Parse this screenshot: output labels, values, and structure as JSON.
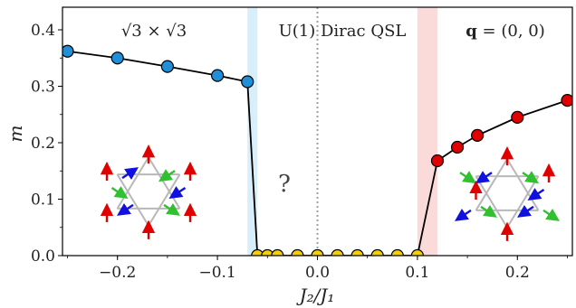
{
  "chart_data": {
    "type": "line",
    "xlabel": "J₂/J₁",
    "ylabel": "m",
    "xlim": [
      -0.255,
      0.255
    ],
    "ylim": [
      0.0,
      0.44
    ],
    "xticks": [
      -0.2,
      -0.1,
      0.0,
      0.1,
      0.2
    ],
    "xtick_labels": [
      "−0.2",
      "−0.1",
      "0.0",
      "0.1",
      "0.2"
    ],
    "yticks": [
      0.0,
      0.1,
      0.2,
      0.3,
      0.4
    ],
    "ytick_labels": [
      "0.0",
      "0.1",
      "0.2",
      "0.3",
      "0.4"
    ],
    "series": [
      {
        "color": "#1f8fd8",
        "x": [
          -0.25,
          -0.2,
          -0.15,
          -0.1,
          -0.07
        ],
        "y": [
          0.362,
          0.35,
          0.335,
          0.319,
          0.308
        ]
      },
      {
        "color": "#f5d000",
        "x": [
          -0.06,
          -0.05,
          -0.04,
          -0.02,
          0.0,
          0.02,
          0.04,
          0.06,
          0.08,
          0.1
        ],
        "y": [
          0.0,
          0.0,
          0.0,
          0.0,
          0.0,
          0.0,
          0.0,
          0.0,
          0.0,
          0.0
        ]
      },
      {
        "color": "#e00000",
        "x": [
          0.12,
          0.14,
          0.16,
          0.2,
          0.25
        ],
        "y": [
          0.168,
          0.192,
          0.213,
          0.245,
          0.275
        ]
      }
    ],
    "connect": [
      {
        "from": [
          -0.07,
          0.308
        ],
        "to": [
          -0.06,
          0.0
        ]
      },
      {
        "from": [
          0.1,
          0.0
        ],
        "to": [
          0.12,
          0.168
        ]
      }
    ],
    "bands": [
      {
        "x0": -0.07,
        "x1": -0.06,
        "color": "#d8effb"
      },
      {
        "x0": 0.1,
        "x1": 0.12,
        "color": "#fbdada"
      }
    ],
    "vline": {
      "x": 0.0,
      "color": "#a0a0a0"
    },
    "annotations": {
      "left_phase": "√3 × √3",
      "middle_phase": "U(1) Dirac QSL",
      "right_phase_bold": "q",
      "right_phase_rest": " = (0, 0)",
      "question": "?"
    }
  }
}
